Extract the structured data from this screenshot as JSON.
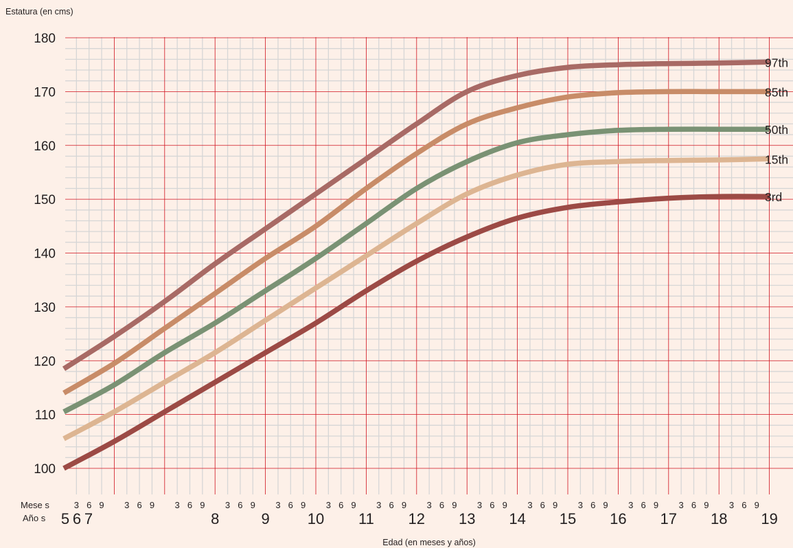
{
  "chart_data": {
    "type": "line",
    "title": "",
    "ylabel": "Estatura (en cms)",
    "xlabel": "Edad (en meses y años)",
    "ylim": [
      100,
      180
    ],
    "yticks": [
      100,
      110,
      120,
      130,
      140,
      150,
      160,
      170,
      180
    ],
    "row_labels": {
      "months": "Mese s",
      "years": "Año s"
    },
    "month_tick_labels": [
      "3",
      "6",
      "9"
    ],
    "year_tick_labels": [
      "5",
      "6",
      "7",
      "8",
      "9",
      "10",
      "11",
      "12",
      "13",
      "14",
      "15",
      "16",
      "17",
      "18",
      "19"
    ],
    "grid": true,
    "legend": "line-end labels, right",
    "x": [
      5,
      6,
      7,
      8,
      9,
      10,
      11,
      12,
      13,
      14,
      15,
      16,
      17,
      18,
      19
    ],
    "series": [
      {
        "name": "97th",
        "color": "#a86a65",
        "values": [
          118.5,
          124.5,
          131.0,
          138.0,
          144.5,
          151.0,
          157.5,
          164.0,
          170.0,
          173.0,
          174.5,
          175.0,
          175.2,
          175.3,
          175.5
        ]
      },
      {
        "name": "85th",
        "color": "#c88c68",
        "values": [
          114.0,
          119.5,
          126.0,
          132.5,
          139.0,
          145.0,
          152.0,
          158.5,
          164.0,
          167.0,
          169.0,
          169.8,
          170.0,
          170.0,
          170.0
        ]
      },
      {
        "name": "50th",
        "color": "#7a9274",
        "values": [
          110.5,
          115.5,
          121.5,
          127.0,
          133.0,
          139.0,
          145.5,
          152.0,
          157.0,
          160.5,
          162.0,
          162.8,
          163.0,
          163.0,
          163.0
        ]
      },
      {
        "name": "15th",
        "color": "#ddb592",
        "values": [
          105.5,
          110.5,
          116.0,
          121.5,
          127.5,
          133.5,
          139.5,
          145.5,
          151.0,
          154.5,
          156.5,
          157.0,
          157.2,
          157.3,
          157.5
        ]
      },
      {
        "name": "3rd",
        "color": "#9c4a45",
        "values": [
          100.0,
          105.0,
          110.5,
          116.0,
          121.5,
          127.0,
          133.0,
          138.5,
          143.0,
          146.5,
          148.5,
          149.5,
          150.2,
          150.5,
          150.5
        ]
      }
    ]
  }
}
